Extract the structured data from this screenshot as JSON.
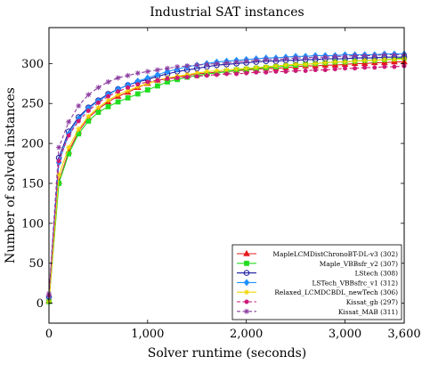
{
  "chart_data": {
    "type": "line",
    "title": "Industrial SAT instances",
    "xlabel": "Solver runtime (seconds)",
    "ylabel": "Number of solved instances",
    "xlim": [
      0,
      3600
    ],
    "ylim": [
      -25,
      345
    ],
    "x_ticks": [
      0,
      1000,
      2000,
      3000,
      3600
    ],
    "x_tick_labels": [
      "0",
      "1,000",
      "2,000",
      "3,000",
      "3,600"
    ],
    "y_ticks": [
      0,
      50,
      100,
      150,
      200,
      250,
      300
    ],
    "y_tick_labels": [
      "0",
      "50",
      "100",
      "150",
      "200",
      "250",
      "300"
    ],
    "grid": false,
    "legend_position": "bottom-right",
    "x": [
      0,
      100,
      200,
      300,
      400,
      500,
      600,
      700,
      800,
      900,
      1000,
      1100,
      1200,
      1300,
      1400,
      1500,
      1600,
      1700,
      1800,
      1900,
      2000,
      2100,
      2200,
      2300,
      2400,
      2500,
      2600,
      2700,
      2800,
      2900,
      3000,
      3100,
      3200,
      3300,
      3400,
      3500,
      3600
    ],
    "series": [
      {
        "name": "MapleLCMDistChronoBT-DL-v3 (302)",
        "color": "#e8191a",
        "marker": "triangle",
        "dashed": false,
        "values": [
          3,
          152,
          190,
          215,
          232,
          243,
          252,
          259,
          264,
          270,
          275,
          279,
          281,
          283,
          285,
          287,
          288,
          289,
          290,
          291,
          292,
          293,
          294,
          294,
          295,
          296,
          297,
          297,
          298,
          298,
          299,
          300,
          300,
          301,
          301,
          302,
          302
        ]
      },
      {
        "name": "Maple_VBBsfr_v2 (307)",
        "color": "#22dd22",
        "marker": "square",
        "dashed": false,
        "values": [
          2,
          150,
          187,
          212,
          228,
          239,
          246,
          252,
          257,
          262,
          267,
          272,
          277,
          280,
          283,
          285,
          287,
          288,
          290,
          292,
          293,
          294,
          295,
          296,
          297,
          298,
          299,
          300,
          301,
          302,
          302,
          303,
          304,
          304,
          305,
          306,
          307
        ]
      },
      {
        "name": "LStech (308)",
        "color": "#1a1aa0",
        "marker": "circle",
        "dashed": false,
        "values": [
          8,
          182,
          215,
          233,
          245,
          254,
          262,
          268,
          273,
          277,
          280,
          284,
          287,
          290,
          292,
          294,
          296,
          298,
          299,
          300,
          301,
          302,
          303,
          303,
          304,
          304,
          305,
          305,
          306,
          306,
          306,
          307,
          307,
          307,
          308,
          308,
          308
        ]
      },
      {
        "name": "LSTech_VBBsfrc_v1 (312)",
        "color": "#1e90ff",
        "marker": "diamond",
        "dashed": false,
        "values": [
          9,
          176,
          212,
          231,
          244,
          253,
          261,
          268,
          273,
          278,
          282,
          286,
          290,
          293,
          296,
          298,
          300,
          302,
          303,
          304,
          305,
          306,
          307,
          307,
          308,
          309,
          309,
          310,
          310,
          310,
          311,
          311,
          311,
          311,
          312,
          312,
          312
        ]
      },
      {
        "name": "Relaxed_LCMDCBDL_newTech (306)",
        "color": "#f2d600",
        "marker": "star",
        "dashed": false,
        "values": [
          2,
          160,
          195,
          218,
          234,
          245,
          254,
          261,
          266,
          271,
          275,
          279,
          282,
          284,
          286,
          288,
          290,
          291,
          292,
          293,
          294,
          295,
          296,
          297,
          298,
          299,
          299,
          300,
          301,
          302,
          302,
          303,
          304,
          304,
          305,
          305,
          306
        ]
      },
      {
        "name": "Kissat_gb (297)",
        "color": "#cc1a77",
        "marker": "dot",
        "dashed": true,
        "values": [
          10,
          178,
          210,
          228,
          241,
          251,
          259,
          265,
          270,
          274,
          277,
          279,
          281,
          282,
          283,
          284,
          285,
          286,
          287,
          287,
          288,
          289,
          289,
          290,
          290,
          291,
          291,
          292,
          292,
          293,
          294,
          294,
          295,
          295,
          296,
          296,
          297
        ]
      },
      {
        "name": "Kissat_MAB (311)",
        "color": "#8a3a9e",
        "marker": "star",
        "dashed": true,
        "values": [
          12,
          195,
          227,
          247,
          261,
          270,
          277,
          282,
          285,
          288,
          290,
          292,
          294,
          296,
          297,
          298,
          299,
          300,
          301,
          302,
          303,
          304,
          305,
          305,
          306,
          307,
          307,
          308,
          308,
          309,
          309,
          310,
          310,
          310,
          311,
          311,
          311
        ]
      }
    ]
  }
}
